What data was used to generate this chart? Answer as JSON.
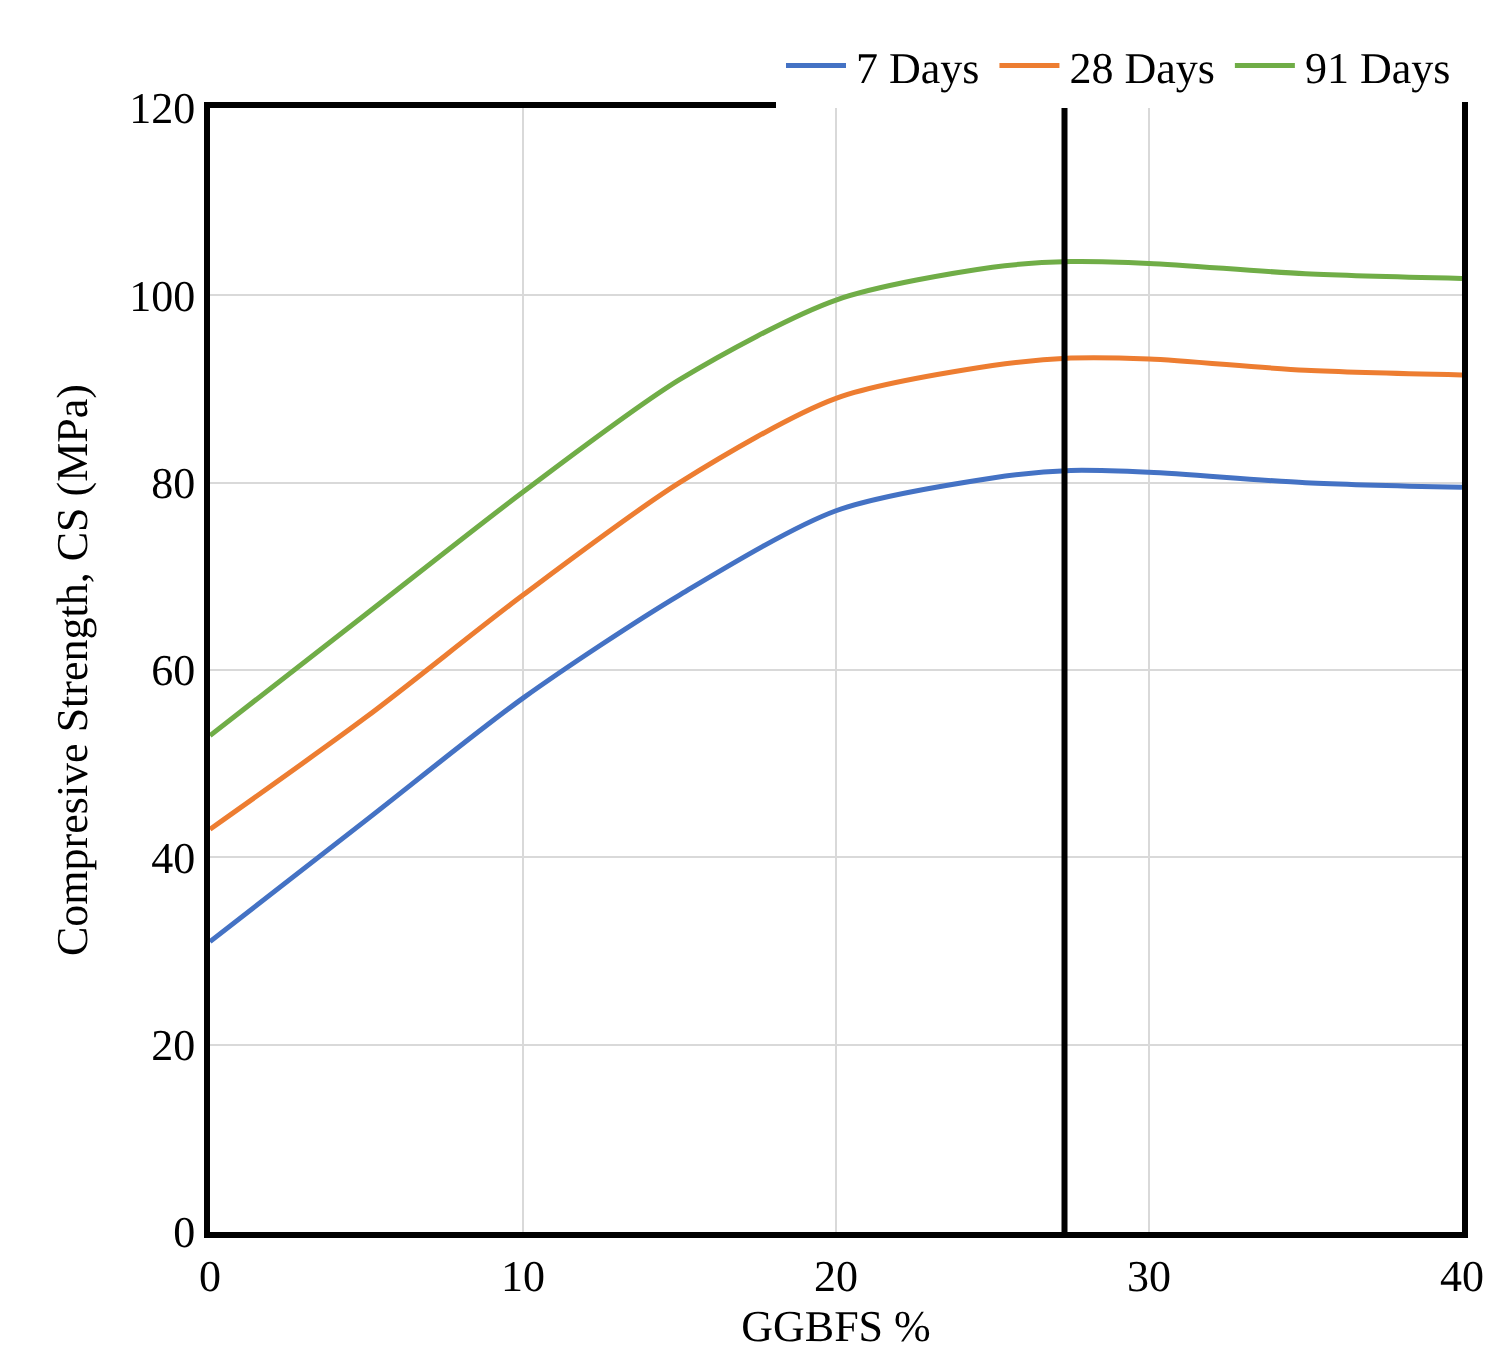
{
  "chart_data": {
    "type": "line",
    "xlabel": "GGBFS %",
    "ylabel": "Compresive Strength, CS (MPa)",
    "x": [
      0,
      5,
      10,
      15,
      20,
      25,
      27.5,
      30,
      35,
      40
    ],
    "series": [
      {
        "name": "7 Days",
        "color": "#4472c4",
        "values": [
          31,
          44,
          57,
          68,
          77,
          80.5,
          81.3,
          81.1,
          80,
          79.5
        ]
      },
      {
        "name": "28 Days",
        "color": "#ed7d31",
        "values": [
          43,
          55,
          68,
          80,
          89,
          92.5,
          93.3,
          93.2,
          92,
          91.5
        ]
      },
      {
        "name": "91 Days",
        "color": "#70ad47",
        "values": [
          53,
          66,
          79,
          91,
          99.5,
          103,
          103.6,
          103.4,
          102.3,
          101.8
        ]
      }
    ],
    "xlim": [
      0,
      40
    ],
    "xticks": [
      0,
      10,
      20,
      30,
      40
    ],
    "ylim": [
      0,
      120
    ],
    "yticks": [
      0,
      20,
      40,
      60,
      80,
      100,
      120
    ],
    "ref_lines": [
      {
        "axis": "x",
        "value": 27.3,
        "color": "#000000"
      }
    ],
    "grid": true,
    "legend": "top",
    "marker": "none",
    "line_style": "solid"
  }
}
